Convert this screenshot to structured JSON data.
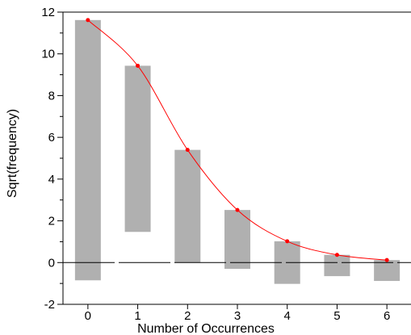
{
  "chart_data": {
    "type": "bar",
    "subtype": "hanging rootogram",
    "xlabel": "Number of Occurrences",
    "ylabel": "Sqrt(frequency)",
    "xlim": [
      -0.5,
      6.5
    ],
    "ylim": [
      -2,
      12
    ],
    "x_ticks": [
      0,
      1,
      2,
      3,
      4,
      5,
      6
    ],
    "y_ticks": [
      -2,
      0,
      2,
      4,
      6,
      8,
      10,
      12
    ],
    "grid": false,
    "bars": {
      "name": "",
      "color": "#b0b0b0",
      "x": [
        0,
        1,
        2,
        3,
        4,
        5,
        6
      ],
      "top": [
        11.62,
        9.43,
        5.4,
        2.52,
        1.02,
        0.37,
        0.12
      ],
      "bottom": [
        -0.85,
        1.47,
        0.0,
        -0.3,
        -1.02,
        -0.65,
        -0.88
      ]
    },
    "fitted_curve": {
      "name": "",
      "color": "#ff0000",
      "x": [
        0,
        1,
        2,
        3,
        4,
        5,
        6
      ],
      "y": [
        11.62,
        9.43,
        5.4,
        2.52,
        1.02,
        0.37,
        0.12
      ]
    },
    "reference_line": {
      "y": 0,
      "style": "dashed",
      "color": "#000000"
    }
  }
}
